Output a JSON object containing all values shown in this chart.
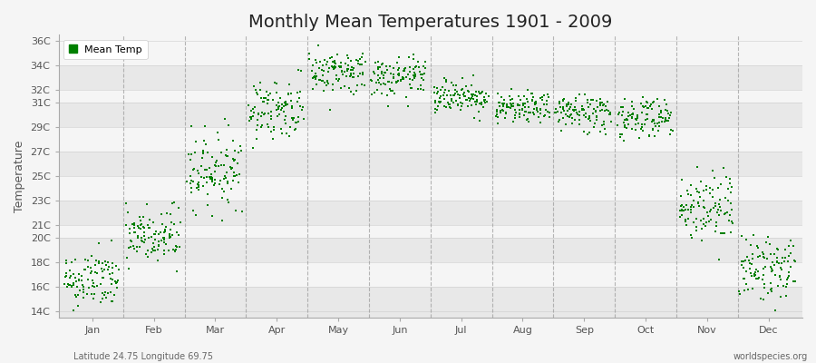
{
  "title": "Monthly Mean Temperatures 1901 - 2009",
  "ylabel": "Temperature",
  "xlabel_bottom_left": "Latitude 24.75 Longitude 69.75",
  "xlabel_bottom_right": "worldspecies.org",
  "yticks": [
    "14C",
    "16C",
    "18C",
    "20C",
    "21C",
    "23C",
    "25C",
    "27C",
    "29C",
    "31C",
    "32C",
    "34C",
    "36C"
  ],
  "ytick_values": [
    14,
    16,
    18,
    20,
    21,
    23,
    25,
    27,
    29,
    31,
    32,
    34,
    36
  ],
  "ylim": [
    13.5,
    36.5
  ],
  "months": [
    "Jan",
    "Feb",
    "Mar",
    "Apr",
    "May",
    "Jun",
    "Jul",
    "Aug",
    "Sep",
    "Oct",
    "Nov",
    "Dec"
  ],
  "month_means": [
    16.5,
    20.0,
    25.5,
    30.5,
    33.5,
    33.0,
    31.5,
    30.5,
    30.2,
    29.8,
    22.5,
    17.5
  ],
  "month_stds": [
    1.2,
    1.3,
    1.5,
    1.2,
    0.9,
    0.8,
    0.7,
    0.6,
    0.8,
    0.9,
    1.5,
    1.3
  ],
  "n_years": 109,
  "dot_color": "#008000",
  "dot_size": 3,
  "background_color": "#f5f5f5",
  "plot_bg_color": "#ffffff",
  "grid_color": "#999999",
  "title_fontsize": 14,
  "legend_label": "Mean Temp",
  "marker": "s",
  "band_colors": [
    "#e8e8e8",
    "#f5f5f5"
  ]
}
